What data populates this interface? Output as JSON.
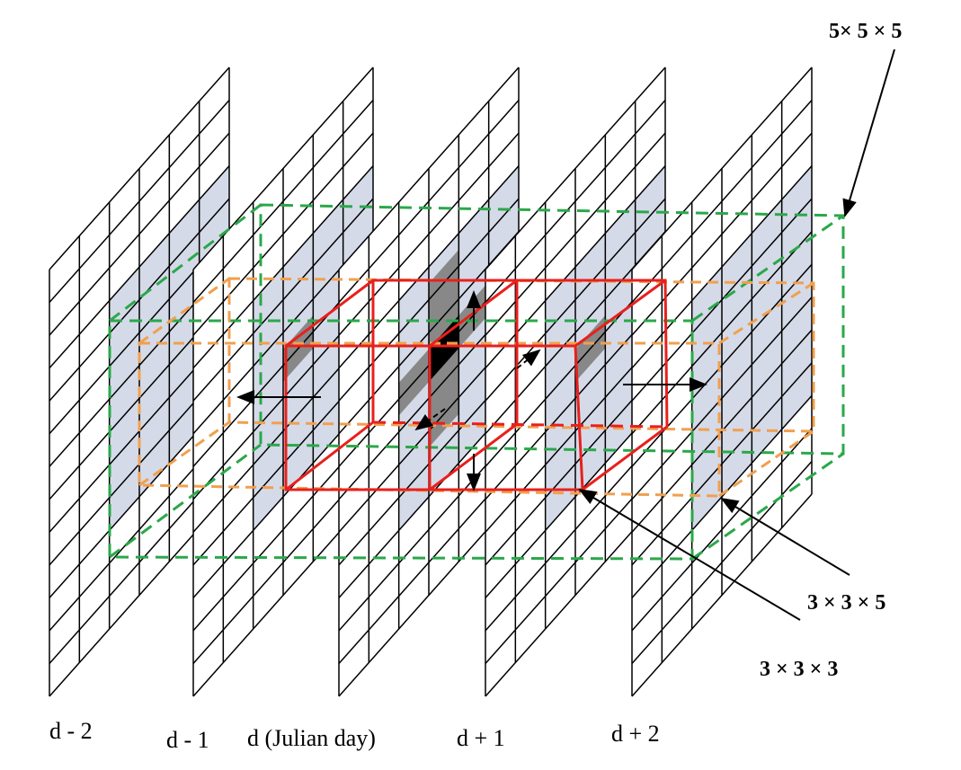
{
  "labels": {
    "box_5x5x5": "5× 5 × 5",
    "box_3x3x5": "3 × 3 × 5",
    "box_3x3x3": "3 × 3 × 3"
  },
  "days": [
    "d - 2",
    "d - 1",
    "d (Julian day)",
    "d + 1",
    "d + 2"
  ]
}
